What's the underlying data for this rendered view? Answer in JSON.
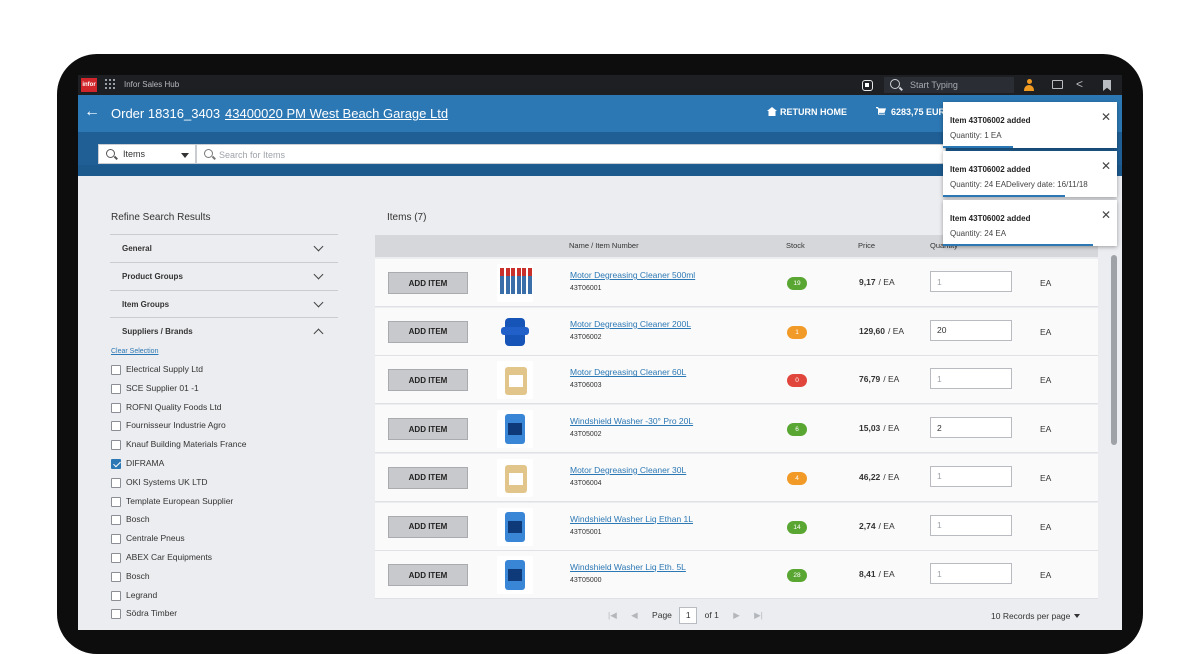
{
  "appbar": {
    "logo": "infor",
    "app_name": "Infor Sales Hub",
    "search_placeholder": "Start Typing"
  },
  "order": {
    "title": "Order 18316_3403",
    "customer": "43400020 PM West Beach Garage Ltd",
    "return_home": "RETURN HOME",
    "cart_total": "6283,75 EUR"
  },
  "search": {
    "scope": "Items",
    "placeholder": "Search for Items"
  },
  "refine": {
    "title": "Refine Search Results",
    "facets": [
      "General",
      "Product Groups",
      "Item Groups",
      "Suppliers / Brands"
    ],
    "clear": "Clear Selection",
    "suppliers": [
      {
        "name": "Electrical Supply Ltd",
        "checked": false
      },
      {
        "name": "SCE Supplier 01 -1",
        "checked": false
      },
      {
        "name": "ROFNI Quality Foods Ltd",
        "checked": false
      },
      {
        "name": "Fournisseur Industrie Agro",
        "checked": false
      },
      {
        "name": "Knauf Building Materials France",
        "checked": false
      },
      {
        "name": "DIFRAMA",
        "checked": true
      },
      {
        "name": "OKI Systems UK LTD",
        "checked": false
      },
      {
        "name": "Template European Supplier",
        "checked": false
      },
      {
        "name": "Bosch",
        "checked": false
      },
      {
        "name": "Centrale Pneus",
        "checked": false
      },
      {
        "name": "ABEX Car Equipments",
        "checked": false
      },
      {
        "name": "Bosch",
        "checked": false
      },
      {
        "name": "Legrand",
        "checked": false
      },
      {
        "name": "Södra Timber",
        "checked": false
      }
    ]
  },
  "items": {
    "title": "Items (7)",
    "headers": {
      "name": "Name / Item Number",
      "stock": "Stock",
      "price": "Price",
      "quantity": "Quantity"
    },
    "add_label": "ADD ITEM",
    "rows": [
      {
        "name": "Motor Degreasing Cleaner 500ml",
        "number": "43T06001",
        "stock": "19",
        "stock_color": "#5aa632",
        "price": "9,17",
        "unit_price": "/ EA",
        "qty": "",
        "qty_placeholder": "1",
        "unit": "EA",
        "thumb": "bottles"
      },
      {
        "name": "Motor Degreasing Cleaner 200L",
        "number": "43T06002",
        "stock": "1",
        "stock_color": "#f29a27",
        "price": "129,60",
        "unit_price": "/ EA",
        "qty": "20",
        "qty_placeholder": "1",
        "unit": "EA",
        "thumb": "drum"
      },
      {
        "name": "Motor Degreasing Cleaner 60L",
        "number": "43T06003",
        "stock": "0",
        "stock_color": "#e1463c",
        "price": "76,79",
        "unit_price": "/ EA",
        "qty": "",
        "qty_placeholder": "1",
        "unit": "EA",
        "thumb": "can"
      },
      {
        "name": "Windshield Washer -30° Pro 20L",
        "number": "43T05002",
        "stock": "6",
        "stock_color": "#5aa632",
        "price": "15,03",
        "unit_price": "/ EA",
        "qty": "2",
        "qty_placeholder": "1",
        "unit": "EA",
        "thumb": "blue"
      },
      {
        "name": "Motor Degreasing Cleaner 30L",
        "number": "43T06004",
        "stock": "4",
        "stock_color": "#f29a27",
        "price": "46,22",
        "unit_price": "/ EA",
        "qty": "",
        "qty_placeholder": "1",
        "unit": "EA",
        "thumb": "can"
      },
      {
        "name": "Windshield Washer Liq Ethan 1L",
        "number": "43T05001",
        "stock": "14",
        "stock_color": "#5aa632",
        "price": "2,74",
        "unit_price": "/ EA",
        "qty": "",
        "qty_placeholder": "1",
        "unit": "EA",
        "thumb": "blue"
      },
      {
        "name": "Windshield Washer Liq Eth. 5L",
        "number": "43T05000",
        "stock": "28",
        "stock_color": "#5aa632",
        "price": "8,41",
        "unit_price": "/ EA",
        "qty": "",
        "qty_placeholder": "1",
        "unit": "EA",
        "thumb": "blue"
      }
    ]
  },
  "pager": {
    "page_label": "Page",
    "page": "1",
    "of_label": "of 1",
    "per_page": "10 Records per page"
  },
  "notifications": [
    {
      "title": "Item 43T06002 added",
      "sub": "Quantity: 1 EA",
      "progress": 0.4
    },
    {
      "title": "Item 43T06002 added",
      "sub": "Quantity: 24 EADelivery date: 16/11/18",
      "progress": 0.7
    },
    {
      "title": "Item 43T06002 added",
      "sub": "Quantity: 24 EA",
      "progress": 0.86
    }
  ]
}
